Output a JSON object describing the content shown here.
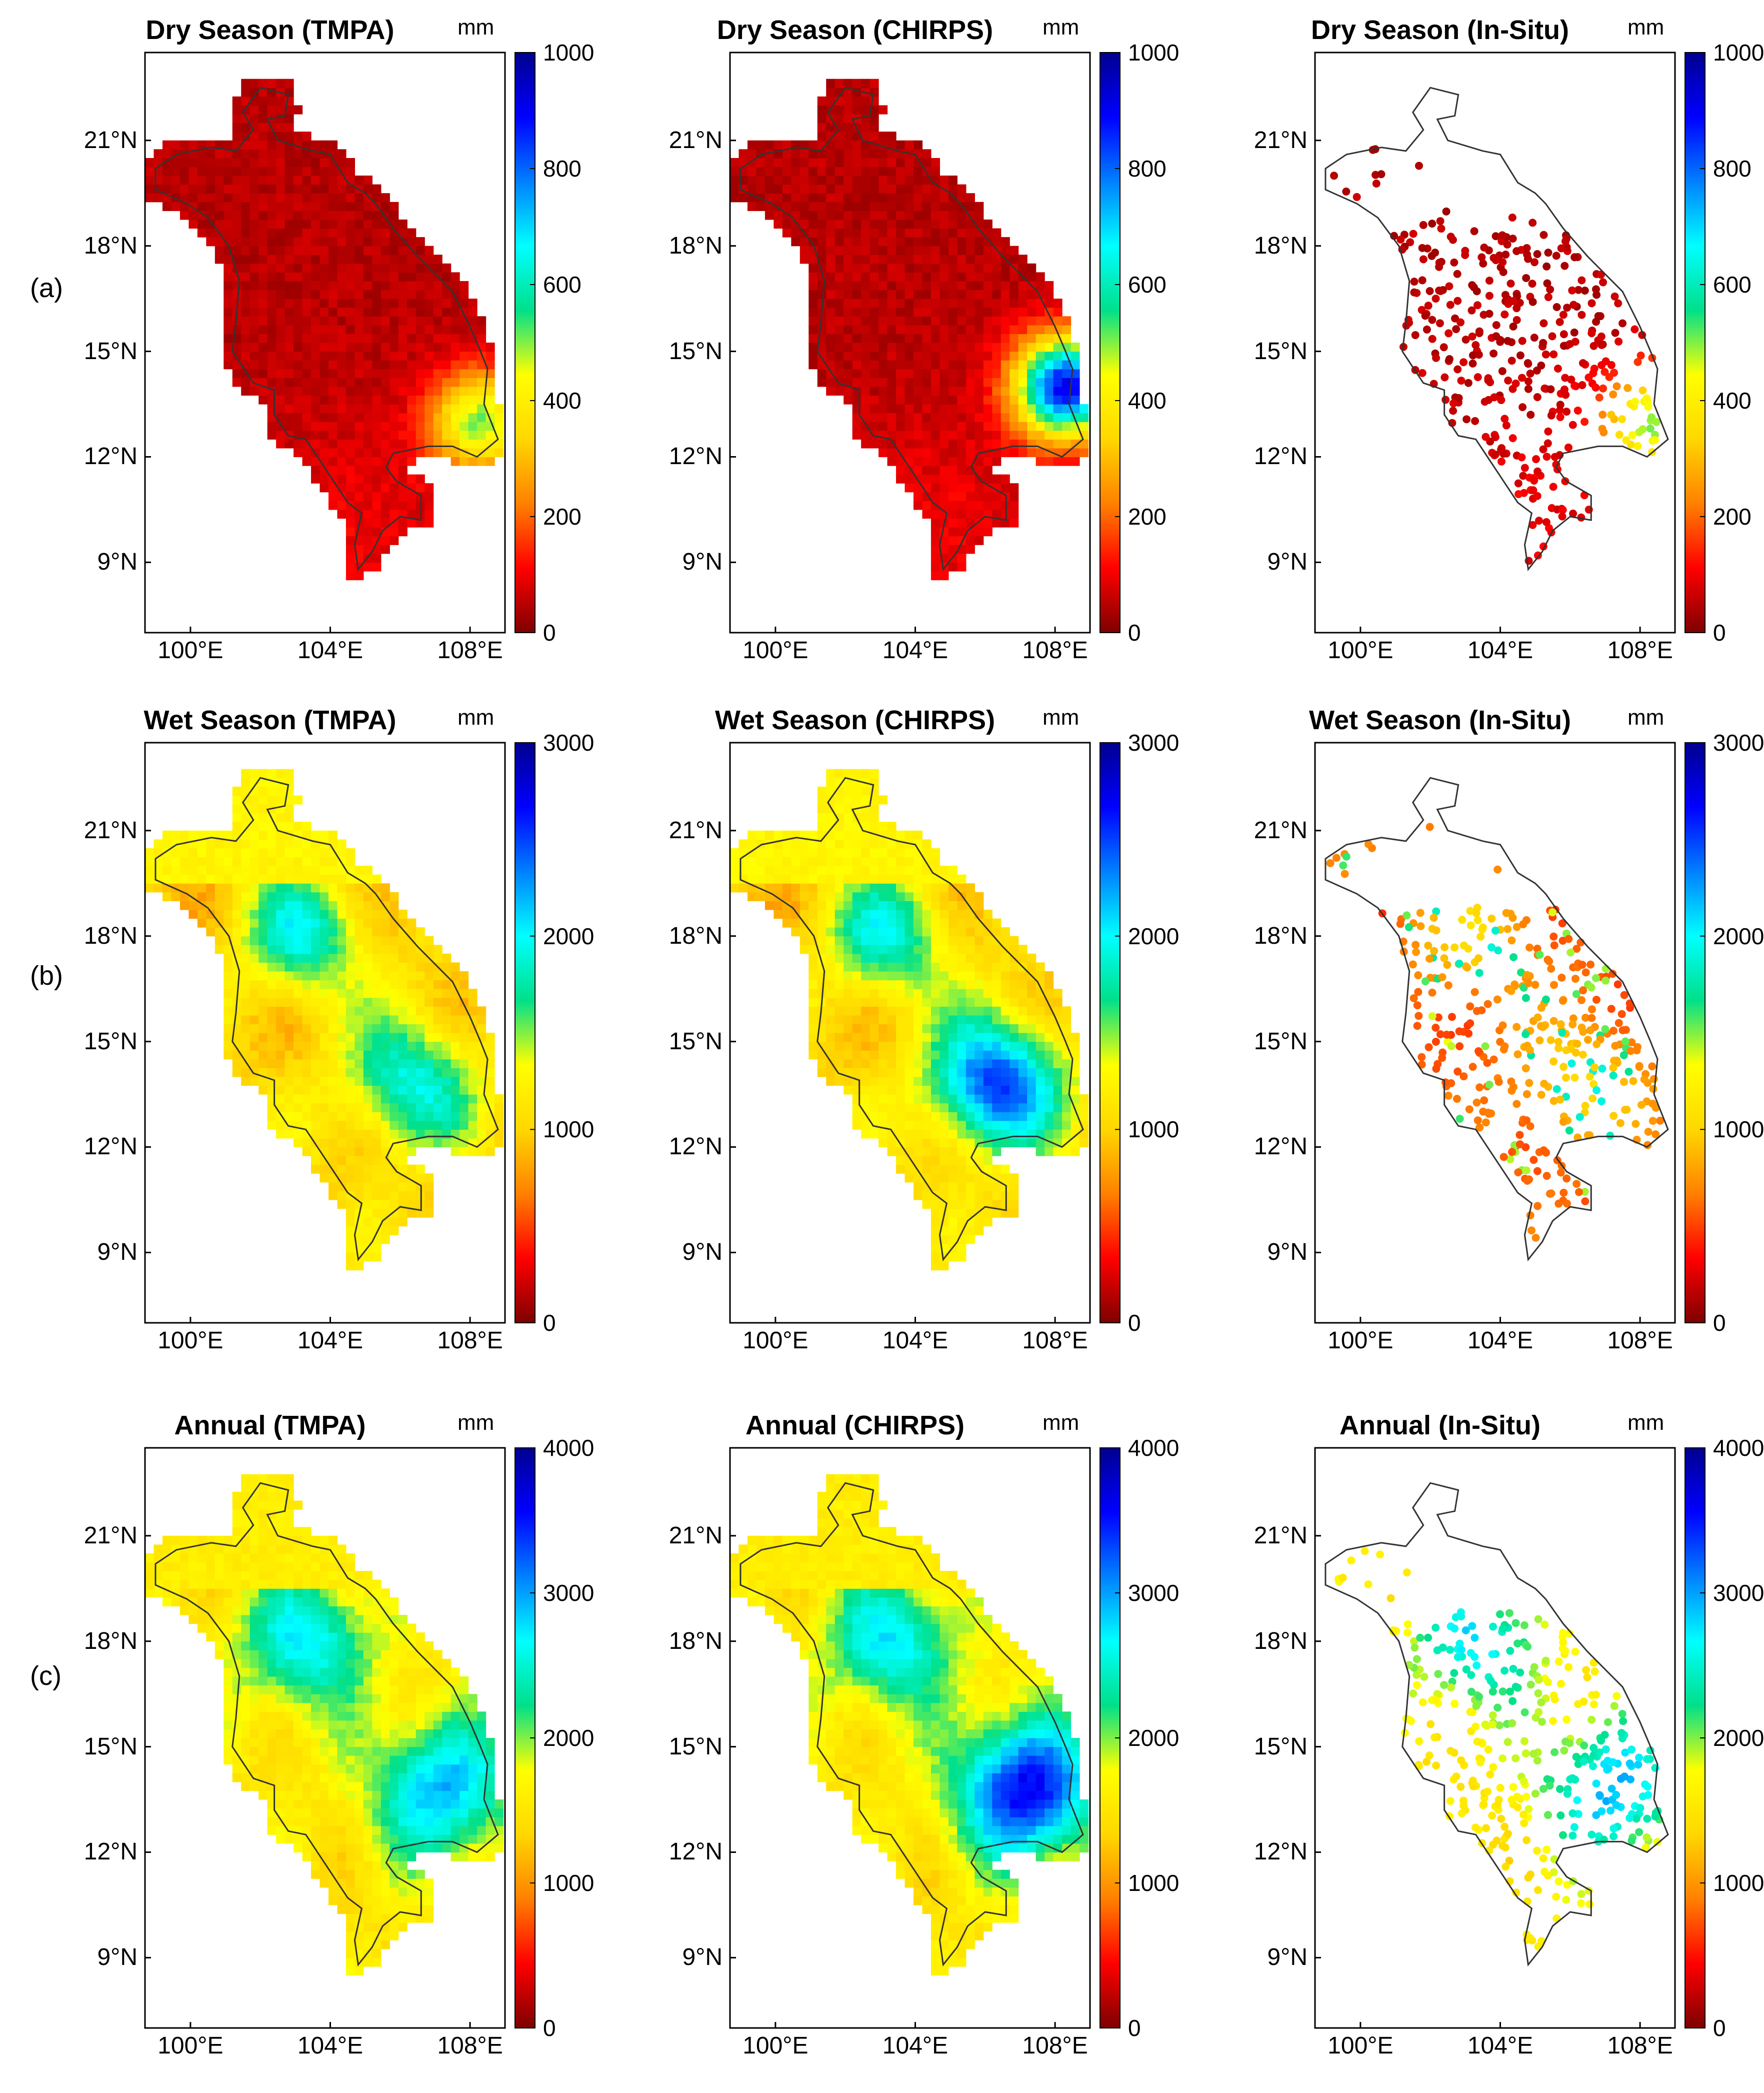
{
  "row_labels": [
    "(a)",
    "(b)",
    "(c)"
  ],
  "unit": "mm",
  "lat_ticks": [
    "21°N",
    "18°N",
    "15°N",
    "12°N",
    "9°N"
  ],
  "lon_ticks": [
    "100°E",
    "104°E",
    "108°E"
  ],
  "colormap": [
    "#7f0000",
    "#ff0000",
    "#ff8000",
    "#ffd700",
    "#ffff00",
    "#00e08a",
    "#00ffff",
    "#0080ff",
    "#0000ff",
    "#00008f"
  ],
  "chart_data": [
    {
      "type": "heatmap",
      "title": "Dry Season (TMPA)",
      "source": "TMPA",
      "season": "Dry Season",
      "colorbar_range": [
        0,
        1000
      ],
      "colorbar_ticks": [
        "0",
        "200",
        "400",
        "600",
        "800",
        "1000"
      ]
    },
    {
      "type": "heatmap",
      "title": "Dry Season (CHIRPS)",
      "source": "CHIRPS",
      "season": "Dry Season",
      "colorbar_range": [
        0,
        1000
      ],
      "colorbar_ticks": [
        "0",
        "200",
        "400",
        "600",
        "800",
        "1000"
      ]
    },
    {
      "type": "scatter",
      "title": "Dry Season (In-Situ)",
      "source": "In-Situ",
      "season": "Dry Season",
      "colorbar_range": [
        0,
        1000
      ],
      "colorbar_ticks": [
        "0",
        "200",
        "400",
        "600",
        "800",
        "1000"
      ]
    },
    {
      "type": "heatmap",
      "title": "Wet Season (TMPA)",
      "source": "TMPA",
      "season": "Wet Season",
      "colorbar_range": [
        0,
        3000
      ],
      "colorbar_ticks": [
        "0",
        "1000",
        "2000",
        "3000"
      ]
    },
    {
      "type": "heatmap",
      "title": "Wet Season (CHIRPS)",
      "source": "CHIRPS",
      "season": "Wet Season",
      "colorbar_range": [
        0,
        3000
      ],
      "colorbar_ticks": [
        "0",
        "1000",
        "2000",
        "3000"
      ]
    },
    {
      "type": "scatter",
      "title": "Wet Season (In-Situ)",
      "source": "In-Situ",
      "season": "Wet Season",
      "colorbar_range": [
        0,
        3000
      ],
      "colorbar_ticks": [
        "0",
        "1000",
        "2000",
        "3000"
      ]
    },
    {
      "type": "heatmap",
      "title": "Annual (TMPA)",
      "source": "TMPA",
      "season": "Annual",
      "colorbar_range": [
        0,
        4000
      ],
      "colorbar_ticks": [
        "0",
        "1000",
        "2000",
        "3000",
        "4000"
      ]
    },
    {
      "type": "heatmap",
      "title": "Annual (CHIRPS)",
      "source": "CHIRPS",
      "season": "Annual",
      "colorbar_range": [
        0,
        4000
      ],
      "colorbar_ticks": [
        "0",
        "1000",
        "2000",
        "3000",
        "4000"
      ]
    },
    {
      "type": "scatter",
      "title": "Annual (In-Situ)",
      "source": "In-Situ",
      "season": "Annual",
      "colorbar_range": [
        0,
        4000
      ],
      "colorbar_ticks": [
        "0",
        "1000",
        "2000",
        "3000",
        "4000"
      ]
    }
  ],
  "map_extent": {
    "lon": [
      98.7,
      109.0
    ],
    "lat": [
      7.0,
      23.5
    ]
  },
  "basin_outline": [
    [
      102.0,
      22.5
    ],
    [
      102.8,
      22.3
    ],
    [
      102.7,
      21.7
    ],
    [
      102.2,
      21.6
    ],
    [
      102.5,
      21.0
    ],
    [
      103.5,
      20.7
    ],
    [
      104.0,
      20.6
    ],
    [
      104.5,
      19.8
    ],
    [
      105.0,
      19.5
    ],
    [
      105.3,
      19.2
    ],
    [
      105.8,
      18.5
    ],
    [
      106.5,
      17.7
    ],
    [
      107.0,
      17.2
    ],
    [
      107.5,
      16.7
    ],
    [
      108.0,
      15.7
    ],
    [
      108.3,
      15.0
    ],
    [
      108.5,
      14.5
    ],
    [
      108.4,
      13.5
    ],
    [
      108.8,
      12.5
    ],
    [
      108.2,
      12.0
    ],
    [
      107.5,
      12.3
    ],
    [
      106.8,
      12.3
    ],
    [
      105.8,
      12.1
    ],
    [
      105.6,
      11.7
    ],
    [
      105.9,
      11.3
    ],
    [
      106.6,
      10.9
    ],
    [
      106.6,
      10.2
    ],
    [
      106.0,
      10.3
    ],
    [
      105.5,
      9.9
    ],
    [
      105.2,
      9.3
    ],
    [
      104.8,
      8.8
    ],
    [
      104.7,
      9.5
    ],
    [
      104.9,
      10.4
    ],
    [
      104.5,
      10.7
    ],
    [
      103.9,
      11.6
    ],
    [
      103.3,
      12.5
    ],
    [
      102.8,
      12.6
    ],
    [
      102.4,
      13.2
    ],
    [
      102.4,
      13.9
    ],
    [
      101.8,
      14.1
    ],
    [
      101.2,
      15.0
    ],
    [
      101.3,
      15.8
    ],
    [
      101.4,
      17.0
    ],
    [
      101.1,
      18.0
    ],
    [
      100.5,
      18.8
    ],
    [
      99.9,
      19.2
    ],
    [
      99.0,
      19.6
    ],
    [
      99.0,
      20.2
    ],
    [
      99.6,
      20.6
    ],
    [
      100.6,
      20.8
    ],
    [
      101.3,
      20.7
    ],
    [
      101.8,
      21.3
    ],
    [
      101.5,
      21.8
    ]
  ]
}
